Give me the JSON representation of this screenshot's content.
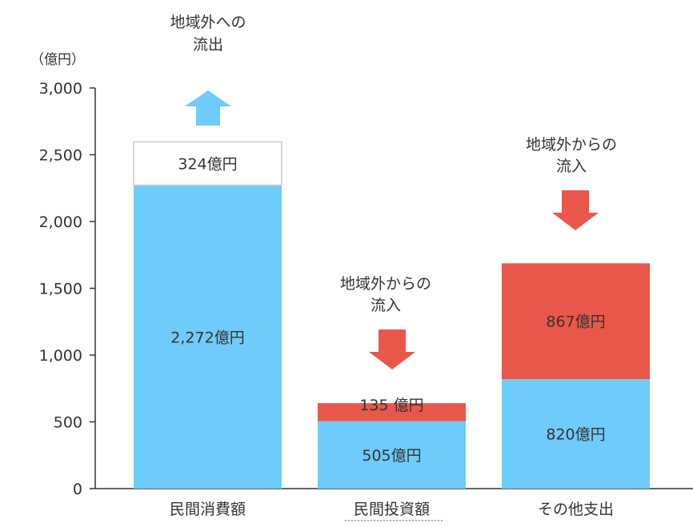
{
  "chart_data": {
    "type": "bar",
    "stacked": true,
    "ylabel": "（億円）",
    "ylim": [
      0,
      3000
    ],
    "yticks": [
      0,
      500,
      1000,
      1500,
      2000,
      2500,
      3000
    ],
    "ytick_labels": [
      "0",
      "500",
      "1,000",
      "1,500",
      "2,000",
      "2,500",
      "3,000"
    ],
    "categories": [
      "民間消費額",
      "民間投資額",
      "その他支出"
    ],
    "series": [
      {
        "values": [
          2272,
          505,
          820
        ],
        "labels": [
          "2,272億円",
          "505億円",
          "820億円"
        ],
        "color": "#6fcbf9"
      },
      {
        "values": [
          324,
          0,
          0
        ],
        "labels": [
          "324億円",
          "",
          ""
        ],
        "color": "#ffffff",
        "stroke": "#c8c8c8"
      },
      {
        "values": [
          0,
          135,
          867
        ],
        "labels": [
          "",
          "135 億円",
          "867億円"
        ],
        "color": "#e9574a"
      }
    ],
    "annotations": [
      {
        "category": 0,
        "lines": [
          "地域外への",
          "流出"
        ],
        "arrow": "up",
        "arrow_color": "#6fcbf9"
      },
      {
        "category": 1,
        "lines": [
          "地域外からの",
          "流入"
        ],
        "arrow": "down",
        "arrow_color": "#e9574a"
      },
      {
        "category": 2,
        "lines": [
          "地域外からの",
          "流入"
        ],
        "arrow": "down",
        "arrow_color": "#e9574a"
      }
    ],
    "grid": false,
    "legend": "none"
  }
}
